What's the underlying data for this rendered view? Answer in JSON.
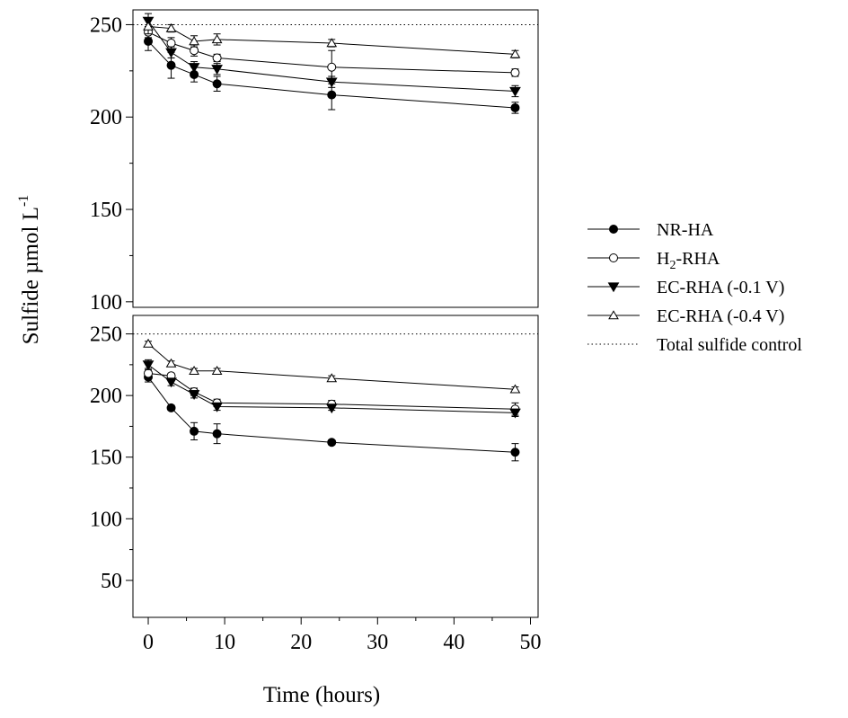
{
  "chart_data": {
    "type": "line",
    "ylabel": "Sulfide µmol L",
    "ylabel_sup": "-1",
    "xlabel": "Time (hours)",
    "x_ticks": [
      0,
      10,
      20,
      30,
      40,
      50
    ],
    "x_tick_labels": [
      "0",
      "10",
      "20",
      "30",
      "40",
      "50"
    ],
    "xlim": [
      -2,
      51
    ],
    "legend_position": "right",
    "colors": {
      "line": "#000000",
      "marker_fill_filled": "#000000",
      "marker_fill_open": "#ffffff"
    },
    "legend": [
      {
        "key": "nr",
        "label": "NR-HA",
        "marker": "circle",
        "filled": true,
        "line": "solid"
      },
      {
        "key": "h2",
        "label_main": "H",
        "label_sub": "2",
        "label_rest": "-RHA",
        "marker": "circle",
        "filled": false,
        "line": "solid"
      },
      {
        "key": "ec1",
        "label": "EC-RHA (-0.1 V)",
        "marker": "triangle-down",
        "filled": true,
        "line": "solid"
      },
      {
        "key": "ec4",
        "label": "EC-RHA (-0.4 V)",
        "marker": "triangle-up",
        "filled": false,
        "line": "solid"
      },
      {
        "key": "ctrl",
        "label": "Total sulfide control",
        "marker": "none",
        "line": "dotted"
      }
    ],
    "panels": [
      {
        "position": "top",
        "ylim": [
          97,
          258
        ],
        "y_ticks": [
          100,
          150,
          200,
          250
        ],
        "y_tick_labels": [
          "100",
          "150",
          "200",
          "250"
        ],
        "control": 250,
        "series": [
          {
            "key": "nr",
            "x": [
              0,
              3,
              6,
              9,
              24,
              48
            ],
            "y": [
              241,
              228,
              223,
              218,
              212,
              205
            ],
            "err": [
              5,
              7,
              4,
              4,
              8,
              3
            ]
          },
          {
            "key": "h2",
            "x": [
              0,
              3,
              6,
              9,
              24,
              48
            ],
            "y": [
              246,
              240,
              236,
              232,
              227,
              224
            ],
            "err": [
              3,
              3,
              3,
              2,
              9,
              2
            ]
          },
          {
            "key": "ec1",
            "x": [
              0,
              3,
              6,
              9,
              24,
              48
            ],
            "y": [
              252,
              235,
              227,
              226,
              219,
              214
            ],
            "err": [
              4,
              3,
              3,
              3,
              3,
              3
            ]
          },
          {
            "key": "ec4",
            "x": [
              0,
              3,
              6,
              9,
              24,
              48
            ],
            "y": [
              249,
              248,
              241,
              242,
              240,
              234
            ],
            "err": [
              4,
              2,
              3,
              3,
              2,
              2
            ]
          }
        ]
      },
      {
        "position": "bottom",
        "ylim": [
          20,
          265
        ],
        "y_ticks": [
          50,
          100,
          150,
          200,
          250
        ],
        "y_tick_labels": [
          "50",
          "100",
          "150",
          "200",
          "250"
        ],
        "control": 250,
        "series": [
          {
            "key": "nr",
            "x": [
              0,
              3,
              6,
              9,
              24,
              48
            ],
            "y": [
              215,
              190,
              171,
              169,
              162,
              154
            ],
            "err": [
              4,
              2,
              7,
              8,
              2,
              7
            ]
          },
          {
            "key": "h2",
            "x": [
              0,
              3,
              6,
              9,
              24,
              48
            ],
            "y": [
              218,
              216,
              203,
              194,
              193,
              189
            ],
            "err": [
              4,
              2,
              3,
              3,
              3,
              5
            ]
          },
          {
            "key": "ec1",
            "x": [
              0,
              3,
              6,
              9,
              24,
              48
            ],
            "y": [
              225,
              211,
              201,
              191,
              190,
              186
            ],
            "err": [
              4,
              3,
              3,
              3,
              2,
              3
            ]
          },
          {
            "key": "ec4",
            "x": [
              0,
              3,
              6,
              9,
              24,
              48
            ],
            "y": [
              242,
              226,
              220,
              220,
              214,
              205
            ],
            "err": [
              2,
              2,
              2,
              2,
              2,
              2
            ]
          }
        ]
      }
    ]
  }
}
